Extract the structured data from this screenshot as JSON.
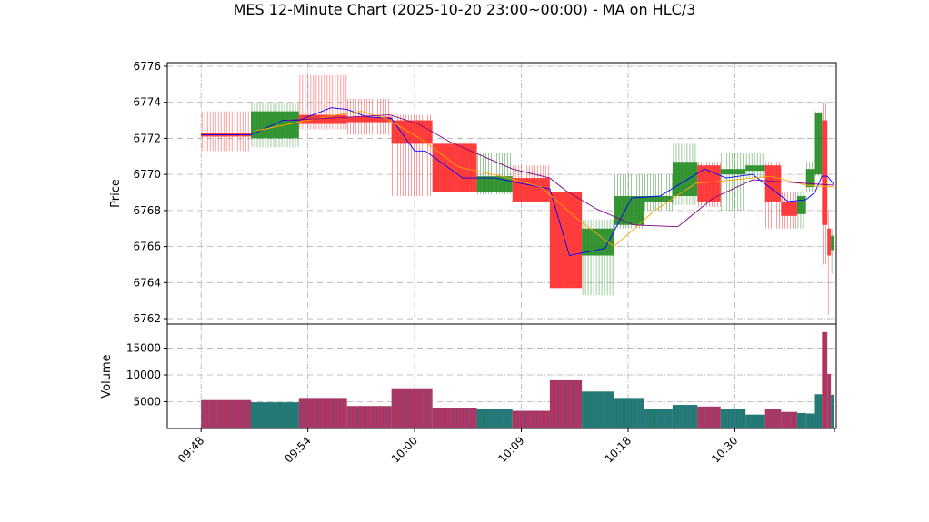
{
  "chart_data": {
    "type": "candlestick-volume",
    "title": "MES 12-Minute Chart (2025-10-20 23:00~00:00) - MA on HLC/3",
    "price_panel": {
      "ylabel": "Price",
      "ylim": [
        6761.7,
        6776.2
      ],
      "yticks": [
        6762,
        6764,
        6766,
        6768,
        6770,
        6772,
        6774,
        6776
      ],
      "grid": true
    },
    "volume_panel": {
      "ylabel": "Volume",
      "ylim": [
        0,
        19500
      ],
      "yticks": [
        5000,
        10000,
        15000
      ],
      "grid": true
    },
    "x_tick_labels": [
      "09:48",
      "09:54",
      "10:00",
      "10:09",
      "10:18",
      "10:30"
    ],
    "x_tick_positions": [
      0,
      6,
      12,
      18,
      24,
      30
    ],
    "xlim": [
      -1.9,
      35.7
    ],
    "colors": {
      "up": "#228b22",
      "down": "#ff2a2a",
      "ma_fast": "#0000ff",
      "ma_mid": "#ffa500",
      "ma_slow": "#800080"
    },
    "bars": [
      {
        "x0": 0.0,
        "x1": 2.8,
        "open": 6772.3,
        "close": 6772.1,
        "high": 6773.5,
        "low": 6771.3,
        "volume": 5300
      },
      {
        "x0": 2.8,
        "x1": 5.5,
        "open": 6772.0,
        "close": 6773.5,
        "high": 6774.0,
        "low": 6771.5,
        "volume": 4900
      },
      {
        "x0": 5.5,
        "x1": 8.2,
        "open": 6773.3,
        "close": 6772.8,
        "high": 6775.5,
        "low": 6772.5,
        "volume": 5700
      },
      {
        "x0": 8.2,
        "x1": 10.7,
        "open": 6773.2,
        "close": 6772.9,
        "high": 6774.2,
        "low": 6772.2,
        "volume": 4200
      },
      {
        "x0": 10.7,
        "x1": 13.0,
        "open": 6773.0,
        "close": 6771.7,
        "high": 6773.3,
        "low": 6768.8,
        "volume": 7500
      },
      {
        "x0": 13.0,
        "x1": 15.5,
        "open": 6771.7,
        "close": 6769.0,
        "high": 6771.7,
        "low": 6769.0,
        "volume": 3900
      },
      {
        "x0": 15.5,
        "x1": 17.5,
        "open": 6769.0,
        "close": 6769.9,
        "high": 6771.2,
        "low": 6768.9,
        "volume": 3600
      },
      {
        "x0": 17.5,
        "x1": 19.6,
        "open": 6769.8,
        "close": 6768.5,
        "high": 6770.5,
        "low": 6768.5,
        "volume": 3300
      },
      {
        "x0": 19.6,
        "x1": 21.4,
        "open": 6769.0,
        "close": 6763.7,
        "high": 6769.0,
        "low": 6763.7,
        "volume": 9000
      },
      {
        "x0": 21.4,
        "x1": 23.2,
        "open": 6765.5,
        "close": 6767.0,
        "high": 6767.5,
        "low": 6763.3,
        "volume": 6900
      },
      {
        "x0": 23.2,
        "x1": 24.9,
        "open": 6767.2,
        "close": 6768.8,
        "high": 6770.0,
        "low": 6767.0,
        "volume": 5700
      },
      {
        "x0": 24.9,
        "x1": 26.5,
        "open": 6768.5,
        "close": 6768.8,
        "high": 6770.0,
        "low": 6768.0,
        "volume": 3600
      },
      {
        "x0": 26.5,
        "x1": 27.9,
        "open": 6768.8,
        "close": 6770.7,
        "high": 6771.7,
        "low": 6768.3,
        "volume": 4400
      },
      {
        "x0": 27.9,
        "x1": 29.2,
        "open": 6770.5,
        "close": 6768.5,
        "high": 6770.7,
        "low": 6768.2,
        "volume": 4100
      },
      {
        "x0": 29.2,
        "x1": 30.6,
        "open": 6770.0,
        "close": 6770.3,
        "high": 6771.2,
        "low": 6768.0,
        "volume": 3600
      },
      {
        "x0": 30.6,
        "x1": 31.7,
        "open": 6770.2,
        "close": 6770.5,
        "high": 6771.2,
        "low": 6769.8,
        "volume": 2600
      },
      {
        "x0": 31.7,
        "x1": 32.6,
        "open": 6770.5,
        "close": 6768.5,
        "high": 6770.7,
        "low": 6767.0,
        "volume": 3600
      },
      {
        "x0": 32.6,
        "x1": 33.5,
        "open": 6768.5,
        "close": 6767.7,
        "high": 6769.0,
        "low": 6767.0,
        "volume": 3100
      },
      {
        "x0": 33.5,
        "x1": 34.0,
        "open": 6767.8,
        "close": 6768.8,
        "high": 6769.0,
        "low": 6767.0,
        "volume": 2900
      },
      {
        "x0": 34.0,
        "x1": 34.5,
        "open": 6769.3,
        "close": 6770.3,
        "high": 6770.7,
        "low": 6769.0,
        "volume": 2800
      },
      {
        "x0": 34.5,
        "x1": 34.9,
        "open": 6770.0,
        "close": 6773.4,
        "high": 6773.5,
        "low": 6769.9,
        "volume": 6400
      },
      {
        "x0": 34.9,
        "x1": 35.2,
        "open": 6773.0,
        "close": 6767.2,
        "high": 6774.0,
        "low": 6765.0,
        "volume": 18000
      },
      {
        "x0": 35.2,
        "x1": 35.4,
        "open": 6767.0,
        "close": 6765.5,
        "high": 6768.0,
        "low": 6762.2,
        "volume": 10200
      },
      {
        "x0": 35.4,
        "x1": 35.55,
        "open": 6765.8,
        "close": 6766.6,
        "high": 6767.0,
        "low": 6764.5,
        "volume": 6300
      }
    ],
    "ma_lines": [
      {
        "color": "#0000ff",
        "points": [
          [
            0,
            6772.2
          ],
          [
            2.8,
            6772.2
          ],
          [
            4.6,
            6773.0
          ],
          [
            5.5,
            6773.0
          ],
          [
            7.3,
            6773.7
          ],
          [
            8.2,
            6773.6
          ],
          [
            9.3,
            6773.2
          ],
          [
            10.7,
            6773.1
          ],
          [
            12.0,
            6771.3
          ],
          [
            12.6,
            6771.3
          ],
          [
            14.7,
            6769.8
          ],
          [
            16.5,
            6769.8
          ],
          [
            18.0,
            6769.5
          ],
          [
            19.6,
            6769.2
          ],
          [
            20.7,
            6765.5
          ],
          [
            22.7,
            6765.9
          ],
          [
            24.2,
            6768.7
          ],
          [
            25.8,
            6768.8
          ],
          [
            28.3,
            6770.3
          ],
          [
            29.5,
            6769.8
          ],
          [
            31.0,
            6770.0
          ],
          [
            33.0,
            6768.5
          ],
          [
            34.0,
            6768.6
          ],
          [
            34.5,
            6769.0
          ],
          [
            34.9,
            6769.9
          ],
          [
            35.2,
            6769.9
          ],
          [
            35.6,
            6769.4
          ]
        ]
      },
      {
        "color": "#ffa500",
        "points": [
          [
            3.0,
            6772.4
          ],
          [
            5.5,
            6772.9
          ],
          [
            7.6,
            6773.3
          ],
          [
            9.0,
            6773.5
          ],
          [
            10.4,
            6773.1
          ],
          [
            12.3,
            6772.0
          ],
          [
            14.5,
            6770.4
          ],
          [
            17.3,
            6769.8
          ],
          [
            19.1,
            6769.3
          ],
          [
            21.2,
            6767.5
          ],
          [
            23.2,
            6766.0
          ],
          [
            25.5,
            6768.0
          ],
          [
            27.8,
            6769.5
          ],
          [
            30.0,
            6769.7
          ],
          [
            32.0,
            6769.9
          ],
          [
            34.0,
            6769.4
          ],
          [
            35.6,
            6769.3
          ]
        ]
      },
      {
        "color": "#800080",
        "points": [
          [
            4.8,
            6773.0
          ],
          [
            6.8,
            6773.1
          ],
          [
            10.6,
            6773.3
          ],
          [
            12.2,
            6772.8
          ],
          [
            14.0,
            6771.8
          ],
          [
            17.5,
            6770.3
          ],
          [
            19.6,
            6769.8
          ],
          [
            20.5,
            6769.1
          ],
          [
            22.2,
            6768.1
          ],
          [
            24.3,
            6767.2
          ],
          [
            26.8,
            6767.1
          ],
          [
            28.8,
            6768.7
          ],
          [
            31.0,
            6769.7
          ],
          [
            34.0,
            6769.5
          ],
          [
            35.6,
            6769.4
          ]
        ]
      }
    ]
  }
}
